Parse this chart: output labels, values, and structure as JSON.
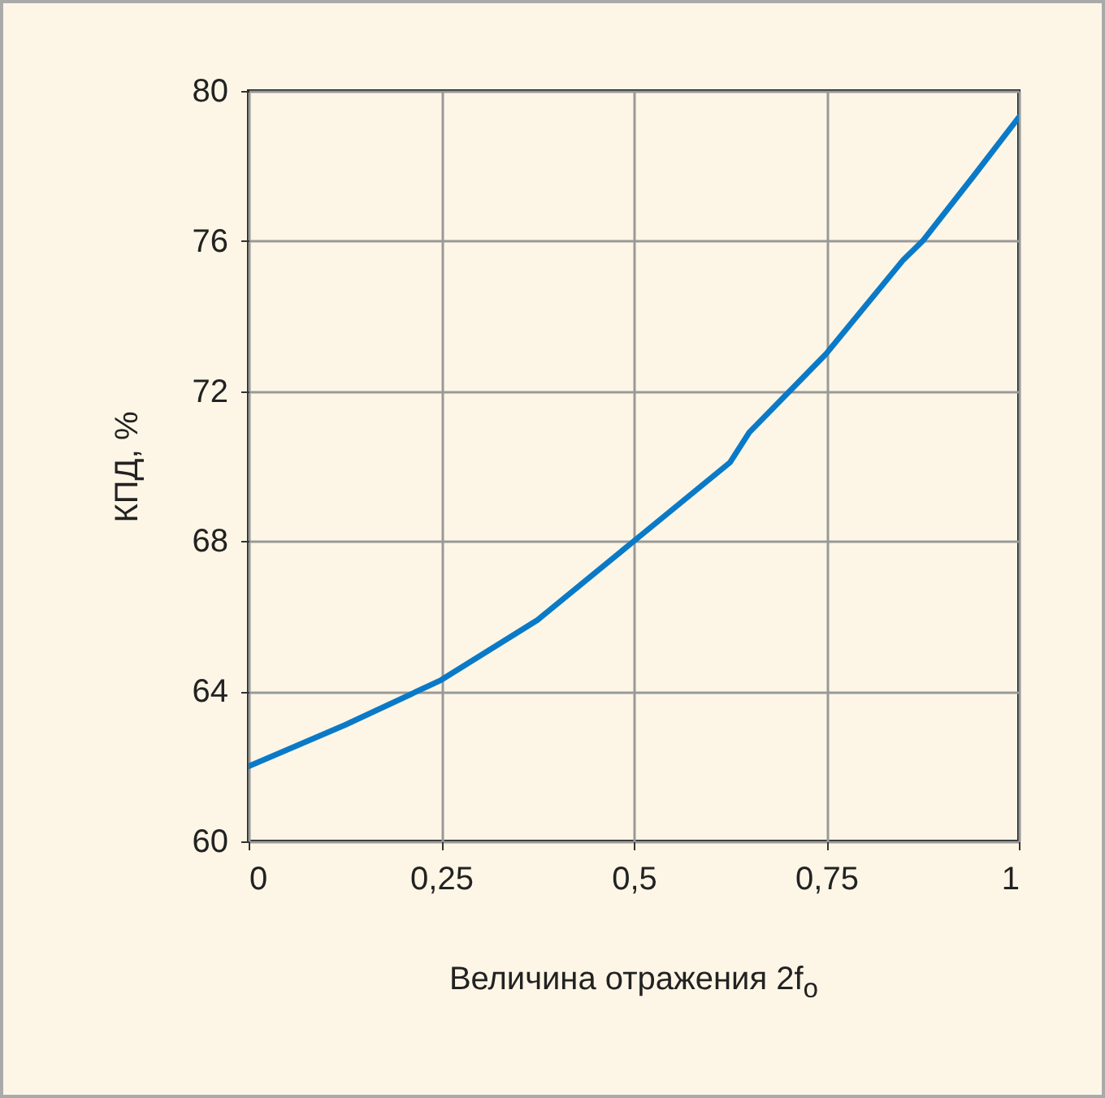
{
  "chart_data": {
    "type": "line",
    "xlabel": "Величина отражения 2f$_{o}$",
    "ylabel": "КПД, %",
    "x": [
      0,
      0.125,
      0.25,
      0.375,
      0.5,
      0.625,
      0.65,
      0.75,
      0.85,
      0.875,
      0.94,
      1
    ],
    "series": [
      {
        "color": "#0a7ac8",
        "values": [
          62,
          63.1,
          64.3,
          65.9,
          68,
          70.1,
          70.9,
          73,
          75.5,
          76,
          77.7,
          79.3
        ]
      }
    ],
    "xlim": [
      0,
      1
    ],
    "xticks": [
      0,
      {
        "value": 0.25,
        "label": "0,25"
      },
      {
        "value": 0.5,
        "label": "0,5"
      },
      {
        "value": 0.75,
        "label": "0,75"
      },
      1
    ],
    "ylim": [
      60,
      80
    ],
    "yticks": [
      60,
      64,
      68,
      72,
      76,
      80
    ],
    "grid": true,
    "marker": "none",
    "line_style": "solid"
  }
}
